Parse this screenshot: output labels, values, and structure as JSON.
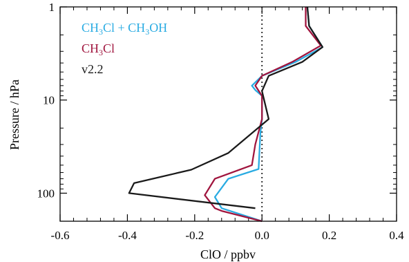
{
  "chart_data": {
    "type": "line",
    "xlabel": "ClO / ppbv",
    "ylabel": "Pressure / hPa",
    "xlim": [
      -0.6,
      0.4
    ],
    "ylim": [
      200,
      1
    ],
    "yscale": "log",
    "xticks": [
      -0.6,
      -0.4,
      -0.2,
      0.0,
      0.2,
      0.4
    ],
    "xtick_labels": [
      "-0.6",
      "-0.4",
      "-0.2",
      "0.0",
      "0.2",
      "0.4"
    ],
    "yticks": [
      1,
      10,
      100
    ],
    "ytick_labels": [
      "1",
      "10",
      "100"
    ],
    "zero_line": {
      "x": 0.0,
      "style": "dotted"
    },
    "legend_position": "top-left",
    "series": [
      {
        "name": "CH₃Cl + CH₃OH",
        "legend_parts": {
          "a": "CH",
          "a_sub": "3",
          "b": "Cl + CH",
          "b_sub": "3",
          "c": "OH"
        },
        "color": "#29abe2",
        "points": [
          {
            "x": 0.135,
            "y": 1.0
          },
          {
            "x": 0.14,
            "y": 1.6
          },
          {
            "x": 0.18,
            "y": 2.7
          },
          {
            "x": 0.1,
            "y": 3.9
          },
          {
            "x": 0.0,
            "y": 5.5
          },
          {
            "x": -0.03,
            "y": 7.0
          },
          {
            "x": -0.02,
            "y": 7.8
          },
          {
            "x": 0.0,
            "y": 9.0
          },
          {
            "x": 0.0,
            "y": 16.0
          },
          {
            "x": -0.005,
            "y": 23.0
          },
          {
            "x": -0.01,
            "y": 55.0
          },
          {
            "x": -0.1,
            "y": 70.0
          },
          {
            "x": -0.14,
            "y": 110.0
          },
          {
            "x": -0.12,
            "y": 145.0
          },
          {
            "x": 0.0,
            "y": 200.0
          }
        ]
      },
      {
        "name": "CH₃Cl",
        "legend_parts": {
          "a": "CH",
          "a_sub": "3",
          "b": "Cl"
        },
        "color": "#a0153e",
        "points": [
          {
            "x": 0.13,
            "y": 1.0
          },
          {
            "x": 0.13,
            "y": 1.6
          },
          {
            "x": 0.175,
            "y": 2.6
          },
          {
            "x": 0.09,
            "y": 3.9
          },
          {
            "x": 0.0,
            "y": 5.5
          },
          {
            "x": -0.02,
            "y": 7.0
          },
          {
            "x": 0.0,
            "y": 9.0
          },
          {
            "x": 0.0,
            "y": 16.0
          },
          {
            "x": -0.02,
            "y": 30.0
          },
          {
            "x": -0.03,
            "y": 50.0
          },
          {
            "x": -0.14,
            "y": 70.0
          },
          {
            "x": -0.17,
            "y": 105.0
          },
          {
            "x": -0.14,
            "y": 145.0
          },
          {
            "x": -0.12,
            "y": 155.0
          },
          {
            "x": 0.0,
            "y": 200.0
          }
        ]
      },
      {
        "name": "v2.2",
        "legend_parts": {
          "a": "v2.2"
        },
        "color": "#1a1a1a",
        "points": [
          {
            "x": 0.135,
            "y": 1.0
          },
          {
            "x": 0.14,
            "y": 1.6
          },
          {
            "x": 0.18,
            "y": 2.7
          },
          {
            "x": 0.12,
            "y": 3.9
          },
          {
            "x": 0.02,
            "y": 5.5
          },
          {
            "x": 0.0,
            "y": 8.0
          },
          {
            "x": 0.02,
            "y": 16.0
          },
          {
            "x": -0.1,
            "y": 37.0
          },
          {
            "x": -0.21,
            "y": 56.0
          },
          {
            "x": -0.38,
            "y": 78.0
          },
          {
            "x": -0.395,
            "y": 100.0
          },
          {
            "x": -0.02,
            "y": 145.0
          }
        ]
      }
    ]
  }
}
